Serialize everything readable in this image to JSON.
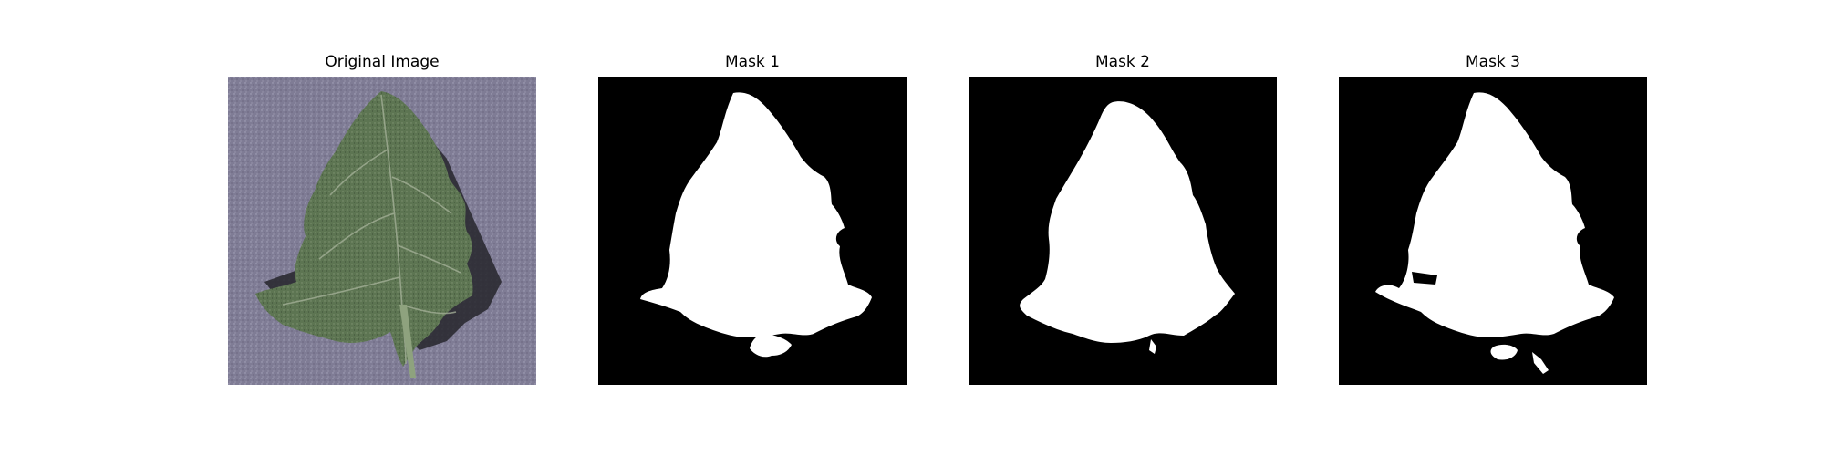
{
  "figure": {
    "panels": [
      {
        "title": "Original Image",
        "kind": "photo",
        "description_icon": "leaf-photo",
        "colors": {
          "background": "#7d7a93",
          "leaf": "#59704f",
          "leaf_dark": "#33442e",
          "shadow": "#1f1f22",
          "vein": "#a7b39b"
        }
      },
      {
        "title": "Mask 1",
        "kind": "mask",
        "colors": {
          "background": "#000000",
          "foreground": "#ffffff"
        }
      },
      {
        "title": "Mask 2",
        "kind": "mask",
        "colors": {
          "background": "#000000",
          "foreground": "#ffffff"
        }
      },
      {
        "title": "Mask 3",
        "kind": "mask",
        "colors": {
          "background": "#000000",
          "foreground": "#ffffff"
        }
      }
    ]
  }
}
